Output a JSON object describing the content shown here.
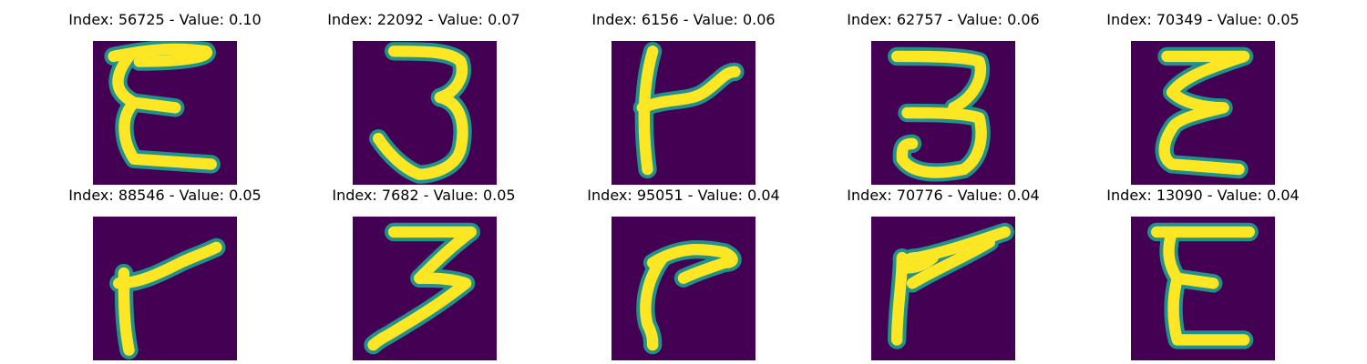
{
  "figure": {
    "colormap": "viridis",
    "background_color": "#440154",
    "stroke_core_color": "#fde725",
    "stroke_edge_color": "#21918c",
    "panels": [
      {
        "title": "Index: 56725 - Value: 0.10",
        "index": 56725,
        "value": 0.1,
        "glyph": "E-curly"
      },
      {
        "title": "Index: 22092 - Value: 0.07",
        "index": 22092,
        "value": 0.07,
        "glyph": "3"
      },
      {
        "title": "Index: 6156 - Value: 0.06",
        "index": 6156,
        "value": 0.06,
        "glyph": "k"
      },
      {
        "title": "Index: 62757 - Value: 0.06",
        "index": 62757,
        "value": 0.06,
        "glyph": "3-wide"
      },
      {
        "title": "Index: 70349 - Value: 0.05",
        "index": 70349,
        "value": 0.05,
        "glyph": "E-zigzag"
      },
      {
        "title": "Index: 88546 - Value: 0.05",
        "index": 88546,
        "value": 0.05,
        "glyph": "r"
      },
      {
        "title": "Index: 7682 - Value: 0.05",
        "index": 7682,
        "value": 0.05,
        "glyph": "3-zigzag"
      },
      {
        "title": "Index: 95051 - Value: 0.04",
        "index": 95051,
        "value": 0.04,
        "glyph": "hook"
      },
      {
        "title": "Index: 70776 - Value: 0.04",
        "index": 70776,
        "value": 0.04,
        "glyph": "V-lean"
      },
      {
        "title": "Index: 13090 - Value: 0.04",
        "index": 13090,
        "value": 0.04,
        "glyph": "E"
      }
    ]
  }
}
